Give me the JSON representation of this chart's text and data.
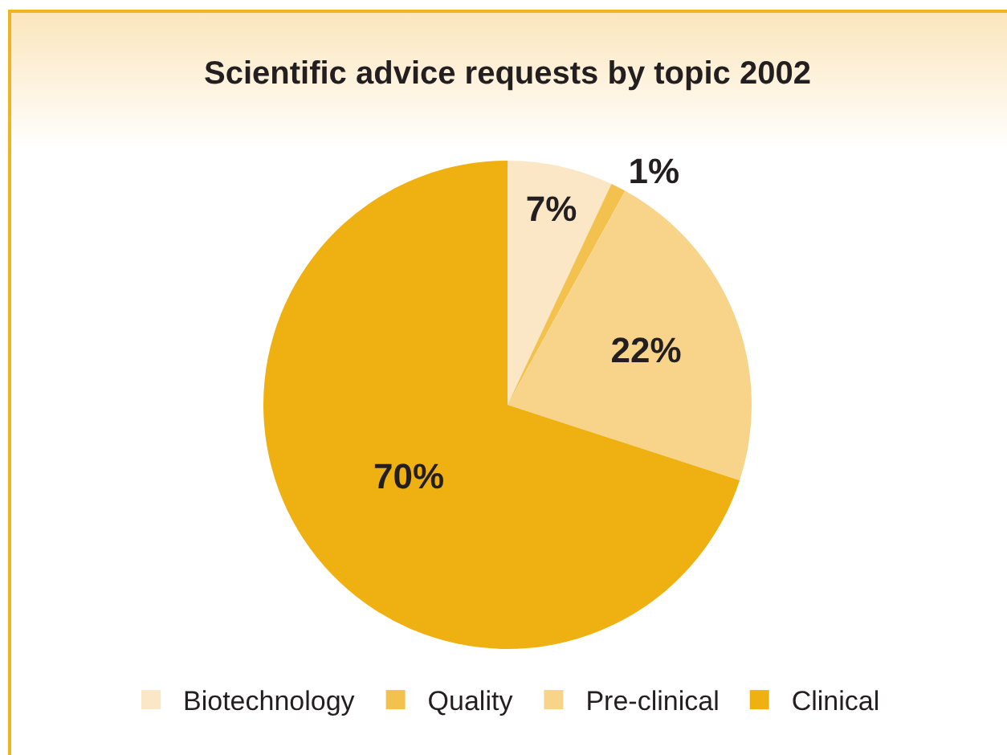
{
  "chart_data": {
    "type": "pie",
    "title": "Scientific advice requests by topic 2002",
    "categories": [
      "Biotechnology",
      "Quality",
      "Pre-clinical",
      "Clinical"
    ],
    "values": [
      7,
      1,
      22,
      70
    ],
    "colors": [
      "#fbe7c6",
      "#f2c14e",
      "#f7d48a",
      "#eeb111"
    ],
    "value_labels": [
      "7%",
      "1%",
      "22%",
      "70%"
    ],
    "legend": "bottom"
  }
}
